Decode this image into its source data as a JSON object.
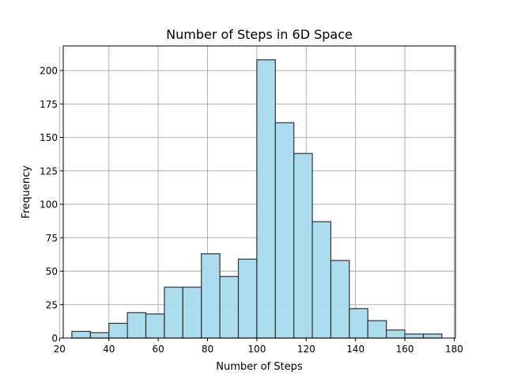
{
  "chart_data": {
    "type": "bar",
    "title": "Number of Steps in 6D Space",
    "xlabel": "Number of Steps",
    "ylabel": "Frequency",
    "xlim": [
      21.5,
      180.5
    ],
    "ylim": [
      0,
      218.4
    ],
    "xticks": [
      20,
      40,
      60,
      80,
      100,
      120,
      140,
      160,
      180
    ],
    "yticks": [
      0,
      25,
      50,
      75,
      100,
      125,
      150,
      175,
      200
    ],
    "grid": true,
    "bar_color": "#a8dbed",
    "edge_color": "#333333",
    "bins": [
      {
        "start": 25,
        "end": 32.5,
        "count": 5
      },
      {
        "start": 32.5,
        "end": 40,
        "count": 4
      },
      {
        "start": 40,
        "end": 47.5,
        "count": 11
      },
      {
        "start": 47.5,
        "end": 55,
        "count": 19
      },
      {
        "start": 55,
        "end": 62.5,
        "count": 18
      },
      {
        "start": 62.5,
        "end": 70,
        "count": 38
      },
      {
        "start": 70,
        "end": 77.5,
        "count": 38
      },
      {
        "start": 77.5,
        "end": 85,
        "count": 63
      },
      {
        "start": 85,
        "end": 92.5,
        "count": 46
      },
      {
        "start": 92.5,
        "end": 100,
        "count": 59
      },
      {
        "start": 100,
        "end": 107.5,
        "count": 208
      },
      {
        "start": 107.5,
        "end": 115,
        "count": 161
      },
      {
        "start": 115,
        "end": 122.5,
        "count": 138
      },
      {
        "start": 122.5,
        "end": 130,
        "count": 87
      },
      {
        "start": 130,
        "end": 137.5,
        "count": 58
      },
      {
        "start": 137.5,
        "end": 145,
        "count": 22
      },
      {
        "start": 145,
        "end": 152.5,
        "count": 13
      },
      {
        "start": 152.5,
        "end": 160,
        "count": 6
      },
      {
        "start": 160,
        "end": 167.5,
        "count": 3
      },
      {
        "start": 167.5,
        "end": 175,
        "count": 3
      }
    ]
  }
}
